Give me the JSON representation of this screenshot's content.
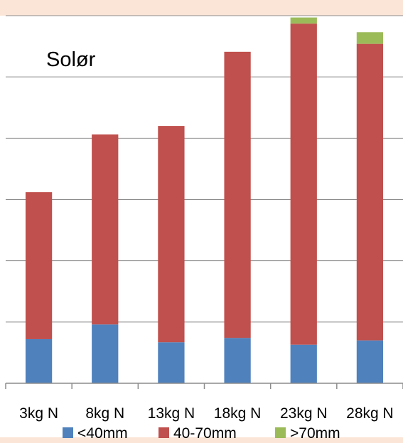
{
  "chart_data": {
    "type": "bar",
    "stacked": true,
    "title": "Solør",
    "categories": [
      "3kg N",
      "8kg N",
      "13kg N",
      "18kg N",
      "23kg N",
      "28kg N"
    ],
    "series": [
      {
        "name": "<40mm",
        "color": "#4F81BD",
        "values": [
          0.72,
          0.96,
          0.67,
          0.74,
          0.63,
          0.7
        ]
      },
      {
        "name": "40-70mm",
        "color": "#C0504D",
        "values": [
          2.4,
          3.1,
          3.53,
          4.67,
          5.24,
          4.84
        ]
      },
      {
        "name": ">70mm",
        "color": "#9BBB59",
        "values": [
          0,
          0,
          0,
          0,
          0.1,
          0.19
        ]
      }
    ],
    "ylim": [
      0,
      6
    ],
    "gridlines": true,
    "y_tick_labels_visible": false,
    "legend_position": "bottom"
  }
}
